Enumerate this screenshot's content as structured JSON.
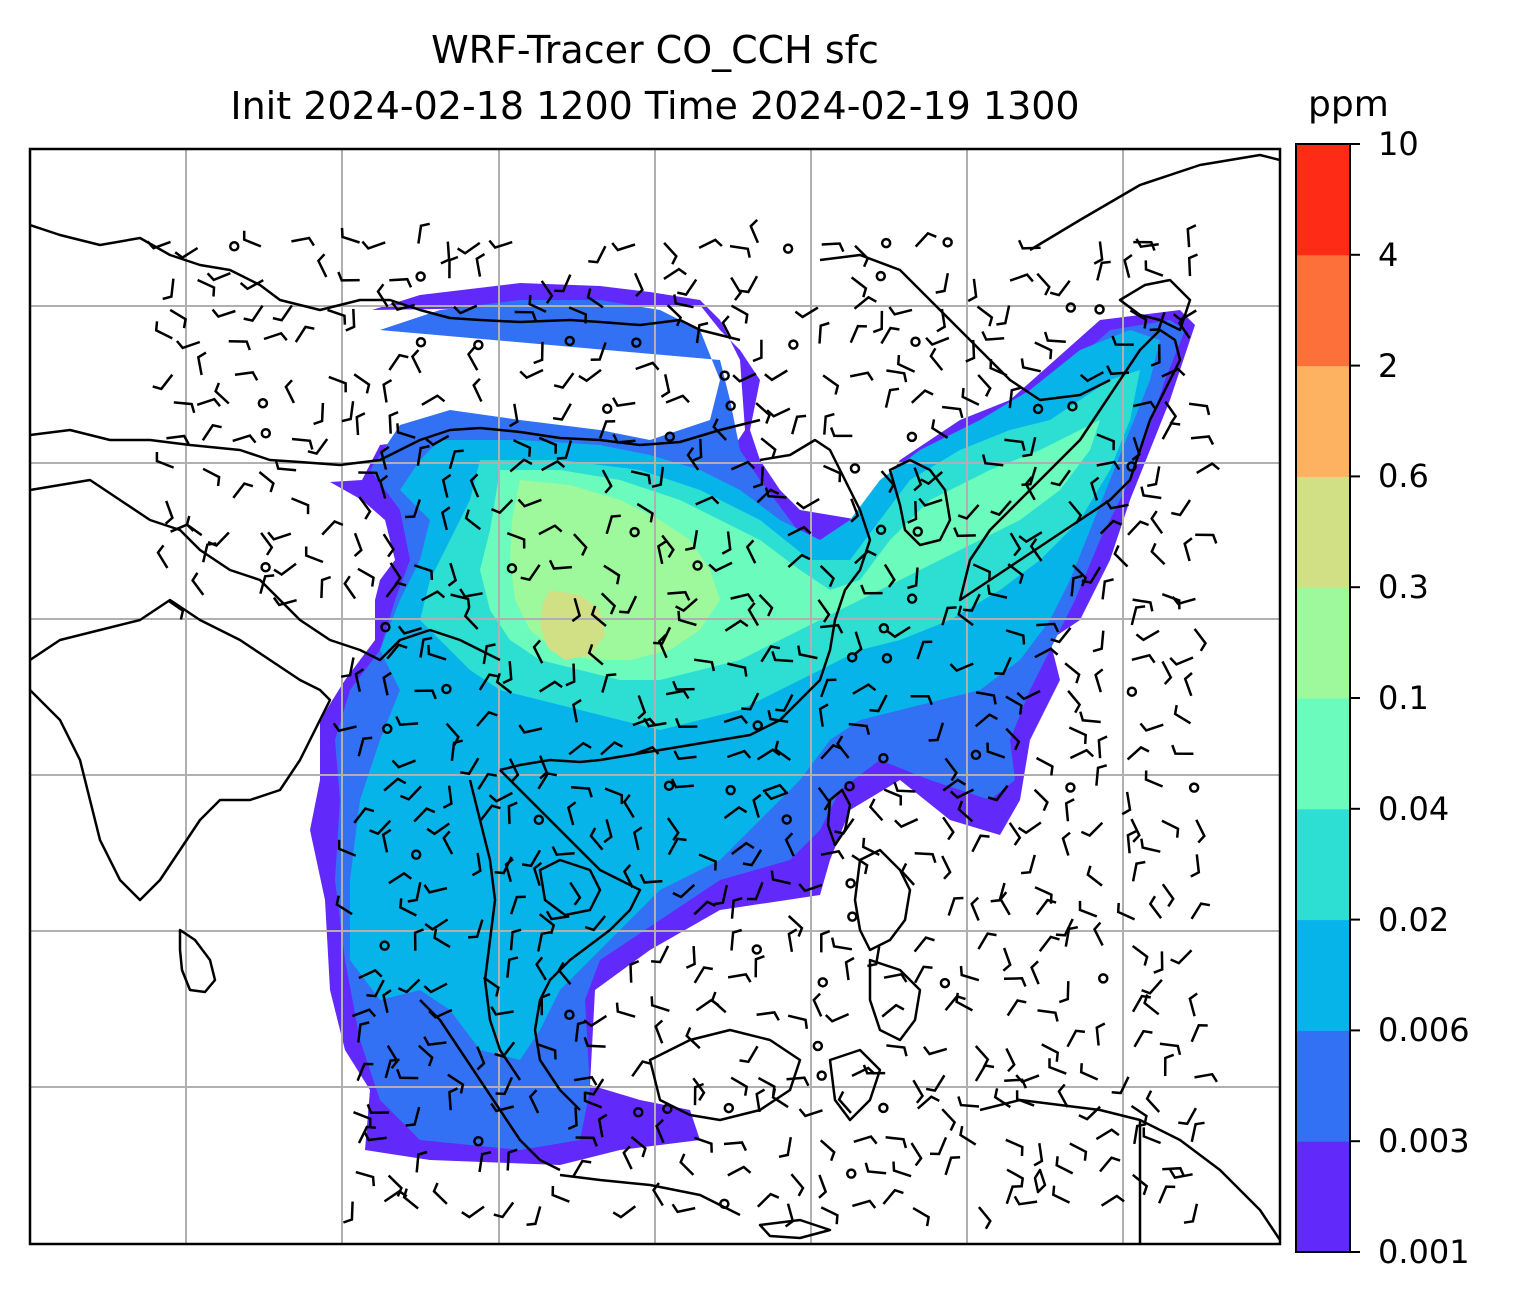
{
  "title_line1": "WRF-Tracer CO_CCH sfc",
  "title_line2": "Init 2024-02-18 1200 Time 2024-02-19 1300",
  "colorbar": {
    "unit": "ppm",
    "levels": [
      "0.001",
      "0.003",
      "0.006",
      "0.02",
      "0.04",
      "0.1",
      "0.3",
      "0.6",
      "2",
      "4",
      "10"
    ],
    "colors": [
      "#6229fb",
      "#3371f4",
      "#07b4ea",
      "#2ddfd3",
      "#6afbbd",
      "#9ef99c",
      "#d1e085",
      "#fdb261",
      "#fe703a",
      "#fe2c16"
    ]
  },
  "map": {
    "gridlines": true,
    "features": [
      "coastlines",
      "country-borders",
      "tracer-concentration-fill",
      "wind-barbs",
      "calm-wind-circles"
    ]
  }
}
